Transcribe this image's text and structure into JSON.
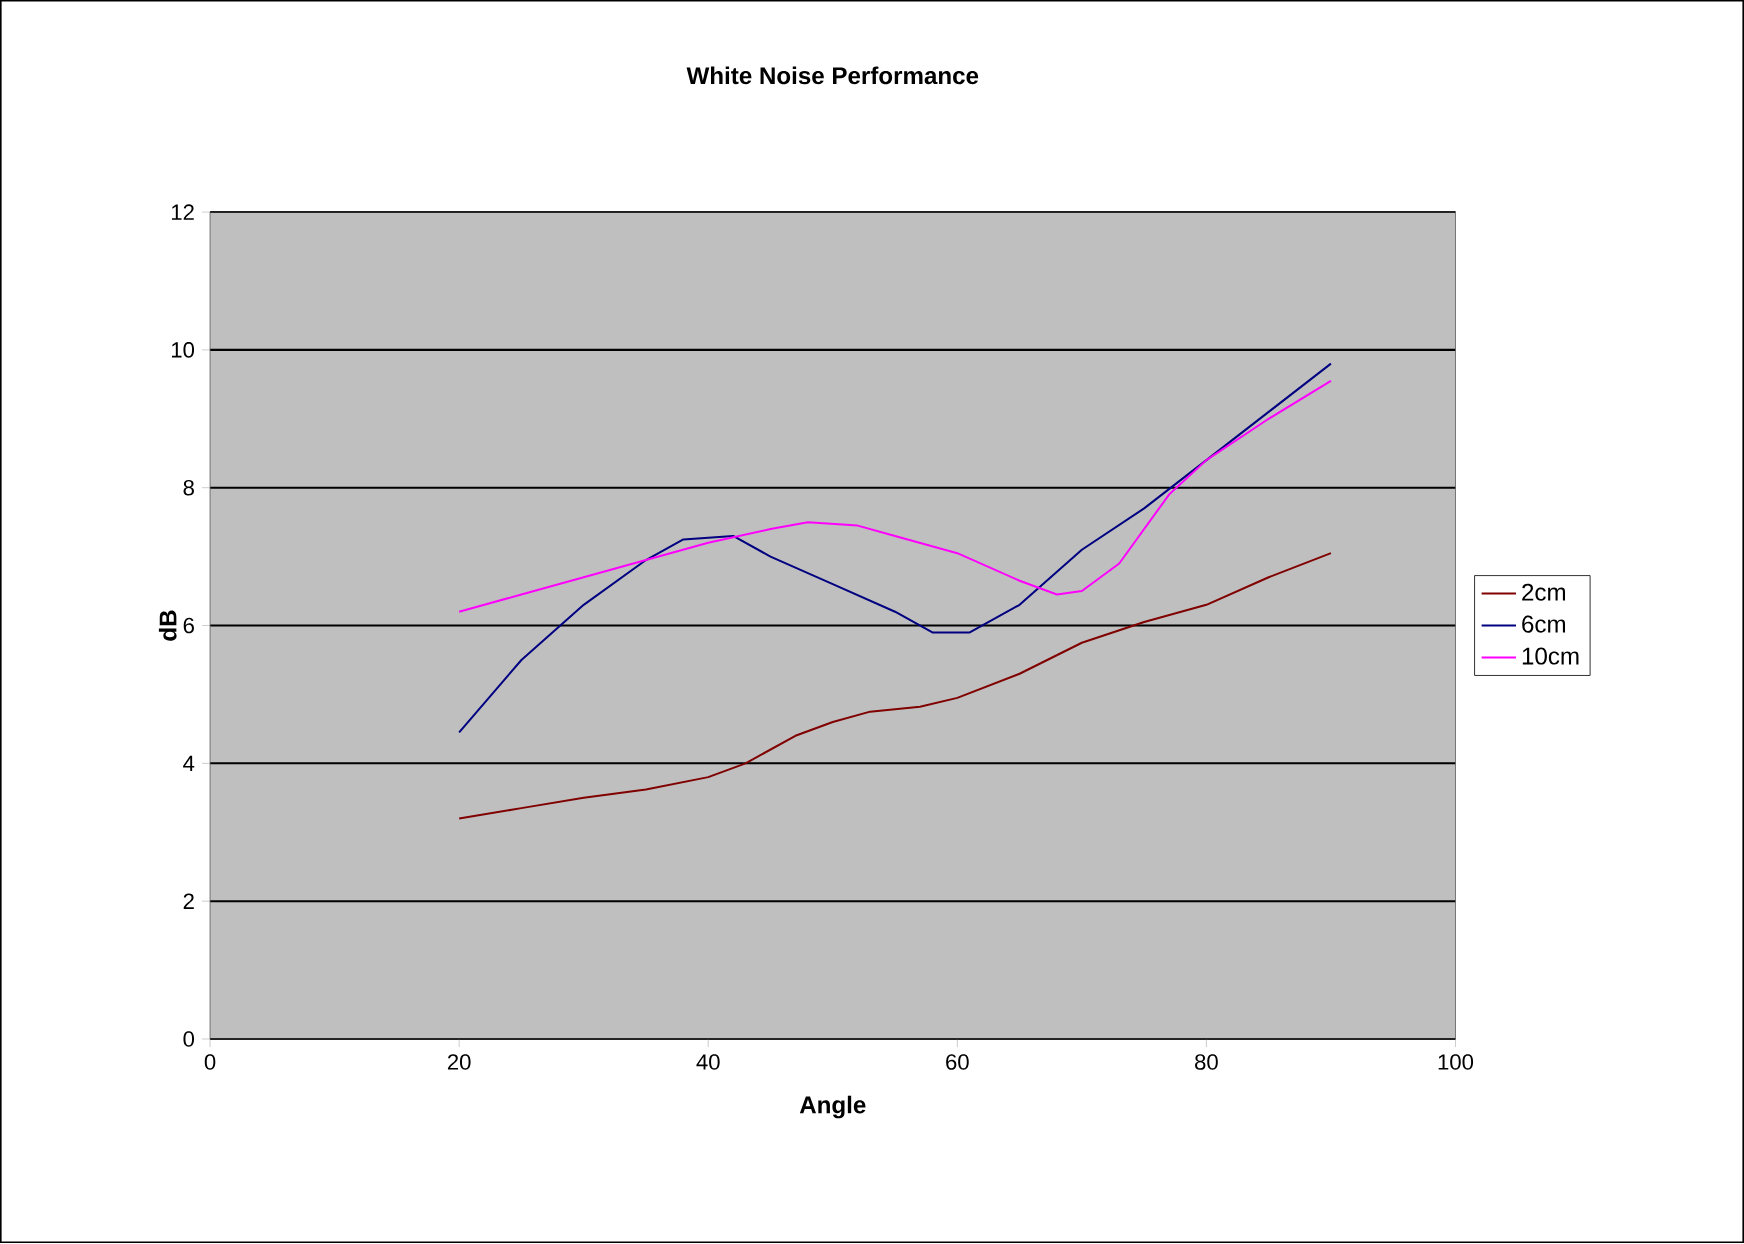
{
  "chart_data": {
    "type": "line",
    "title": "White Noise Performance",
    "xlabel": "Angle",
    "ylabel": "dB",
    "xlim": [
      0,
      100
    ],
    "xticks": [
      0,
      20,
      40,
      60,
      80,
      100
    ],
    "ylim": [
      0,
      12
    ],
    "yticks": [
      0,
      2,
      4,
      6,
      8,
      10,
      12
    ],
    "grid": "y",
    "legend": "right",
    "marker": "none",
    "line_style": "solid",
    "series": [
      {
        "name": "2cm",
        "color": "#800000",
        "x": [
          20,
          25,
          30,
          35,
          40,
          43,
          47,
          50,
          53,
          57,
          60,
          65,
          70,
          75,
          80,
          85,
          90
        ],
        "values": [
          3.2,
          3.35,
          3.5,
          3.62,
          3.8,
          4.0,
          4.4,
          4.6,
          4.75,
          4.82,
          4.95,
          5.3,
          5.75,
          6.05,
          6.3,
          6.7,
          7.05
        ]
      },
      {
        "name": "6cm",
        "color": "#000080",
        "x": [
          20,
          25,
          30,
          35,
          38,
          42,
          45,
          50,
          55,
          58,
          61,
          65,
          70,
          75,
          80,
          85,
          90
        ],
        "values": [
          4.45,
          5.5,
          6.3,
          6.95,
          7.25,
          7.3,
          7.0,
          6.6,
          6.2,
          5.9,
          5.9,
          6.3,
          7.1,
          7.7,
          8.4,
          9.1,
          9.8
        ]
      },
      {
        "name": "10cm",
        "color": "#ff00ff",
        "x": [
          20,
          25,
          30,
          35,
          40,
          45,
          48,
          52,
          55,
          60,
          65,
          68,
          70,
          73,
          77,
          80,
          85,
          90
        ],
        "values": [
          6.2,
          6.45,
          6.7,
          6.95,
          7.2,
          7.4,
          7.5,
          7.45,
          7.3,
          7.05,
          6.65,
          6.45,
          6.5,
          6.9,
          7.9,
          8.4,
          9.0,
          9.55
        ]
      }
    ]
  }
}
